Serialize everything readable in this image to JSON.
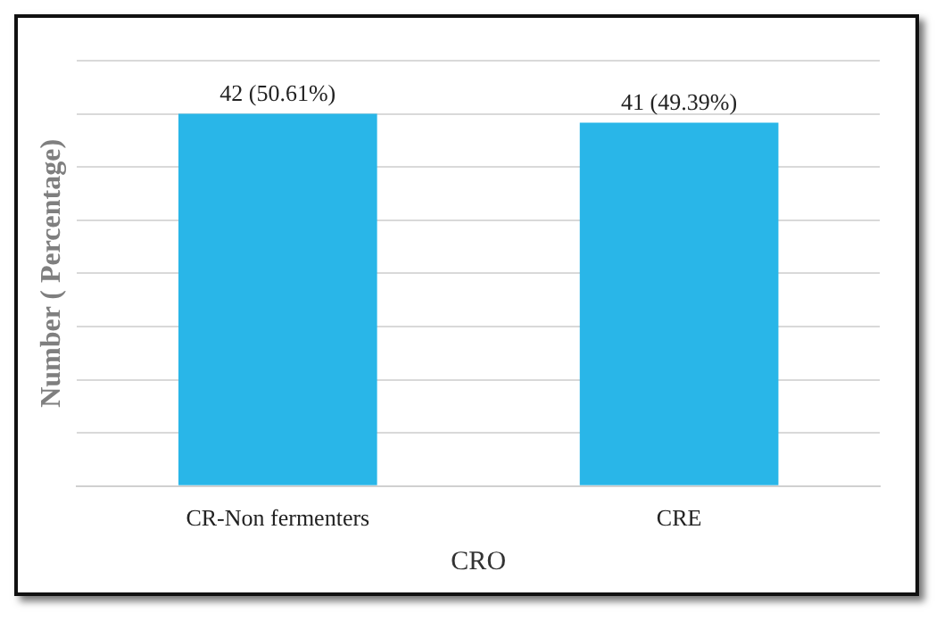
{
  "chart_data": {
    "type": "bar",
    "categories": [
      "CR-Non fermenters",
      "CRE"
    ],
    "values": [
      42,
      41
    ],
    "value_labels": [
      "42 (50.61%)",
      "41 (49.39%)"
    ],
    "color": "#29b6e8",
    "xlabel": "CRO",
    "ylabel": "Number ( Percentage)",
    "ylim": [
      0,
      48
    ],
    "yticks": [
      {
        "value": 0,
        "label": null
      },
      {
        "value": 6,
        "label": null
      },
      {
        "value": 12,
        "label": null
      },
      {
        "value": 18,
        "label": null
      },
      {
        "value": 24,
        "label": null
      },
      {
        "value": 30,
        "label": null
      },
      {
        "value": 36,
        "label": null
      },
      {
        "value": 42,
        "label": null
      },
      {
        "value": 48,
        "label": null
      }
    ],
    "grid": "y",
    "tick_labels": "x"
  }
}
